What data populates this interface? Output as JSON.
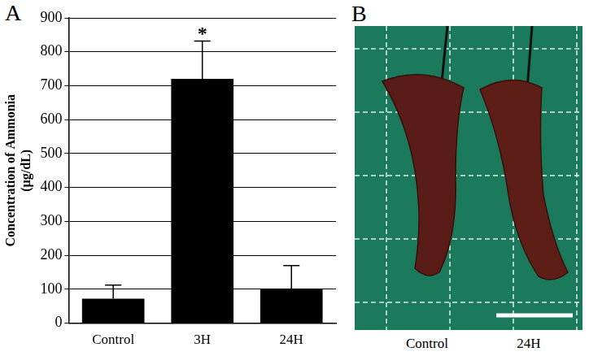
{
  "chart_data": {
    "type": "bar",
    "panel_label": "A",
    "y_label": [
      "Concentration of Ammonia",
      "(µg/dL)"
    ],
    "categories": [
      "Control",
      "3H",
      "24H"
    ],
    "values": [
      72,
      720,
      100
    ],
    "errors": [
      40,
      112,
      70
    ],
    "color": "#000000",
    "ylim": [
      0,
      900
    ],
    "yticks": [
      0,
      100,
      200,
      300,
      400,
      500,
      600,
      700,
      800,
      900
    ],
    "grid": true,
    "legend": false,
    "annotations": [
      {
        "category": "3H",
        "text": "*"
      }
    ]
  },
  "photo": {
    "panel_label": "B",
    "labels": [
      "Control",
      "24H"
    ]
  }
}
